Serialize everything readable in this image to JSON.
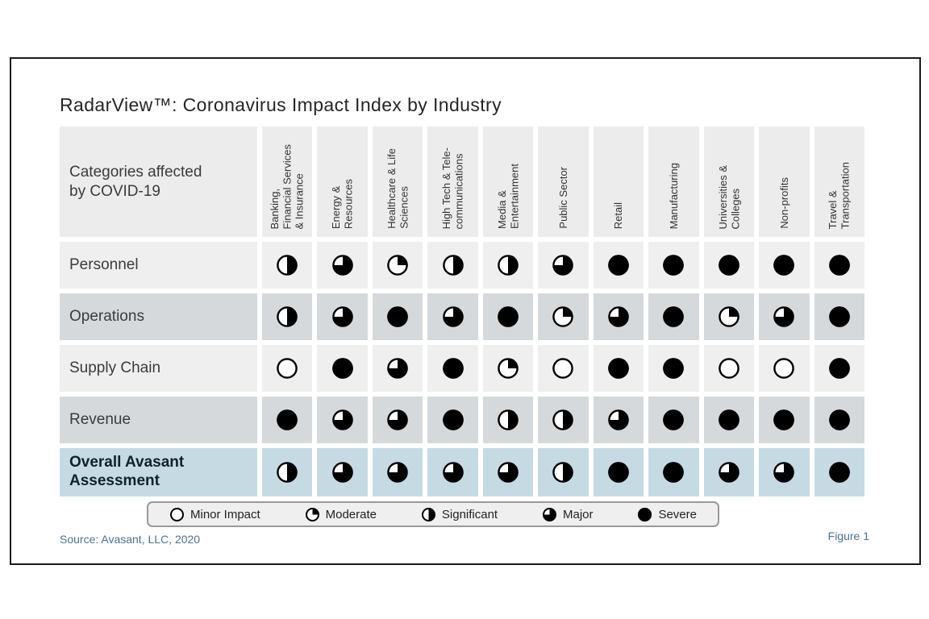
{
  "title": "RadarView™: Coronavirus Impact Index by Industry",
  "footer": {
    "source": "Source: Avasant, LLC, 2020",
    "figure": "Figure 1"
  },
  "legend": [
    {
      "level": "minor",
      "label": "Minor Impact"
    },
    {
      "level": "moderate",
      "label": "Moderate"
    },
    {
      "level": "significant",
      "label": "Significant"
    },
    {
      "level": "major",
      "label": "Major"
    },
    {
      "level": "severe",
      "label": "Severe"
    }
  ],
  "colors": {
    "header_bg": "#ececec",
    "row_light": "#efefef",
    "row_mid": "#d6d9dc",
    "row_accent": "#c6dae4",
    "ball": "#000000",
    "note_blue": "#4f7390",
    "frame_border": "#1a1a1a"
  },
  "chart_data": {
    "type": "table",
    "title": "RadarView™: Coronavirus Impact Index by Industry",
    "corner_label": "Categories affected\nby COVID-19",
    "scale": {
      "minor": 0,
      "moderate": 0.25,
      "significant": 0.5,
      "major": 0.75,
      "severe": 1
    },
    "columns": [
      "Banking,\nFinancial Services\n& Insurance",
      "Energy &\nResources",
      "Healthcare & Life\nSciences",
      "High Tech & Tele-\ncommunications",
      "Media &\nEntertainment",
      "Public Sector",
      "Retail",
      "Manufacturing",
      "Universities &\nColleges",
      "Non-profits",
      "Travel &\nTransportation"
    ],
    "rows": [
      {
        "label": "Personnel",
        "emphasis": false,
        "values": [
          "significant",
          "major",
          "moderate",
          "significant",
          "significant",
          "major",
          "severe",
          "severe",
          "severe",
          "severe",
          "severe"
        ]
      },
      {
        "label": "Operations",
        "emphasis": false,
        "values": [
          "significant",
          "major",
          "severe",
          "major",
          "severe",
          "moderate",
          "major",
          "severe",
          "moderate",
          "major",
          "severe"
        ]
      },
      {
        "label": "Supply Chain",
        "emphasis": false,
        "values": [
          "minor",
          "severe",
          "major",
          "severe",
          "moderate",
          "minor",
          "severe",
          "severe",
          "minor",
          "minor",
          "severe"
        ]
      },
      {
        "label": "Revenue",
        "emphasis": false,
        "values": [
          "severe",
          "major",
          "major",
          "severe",
          "significant",
          "significant",
          "major",
          "severe",
          "severe",
          "severe",
          "severe"
        ]
      },
      {
        "label": "Overall Avasant\nAssessment",
        "emphasis": true,
        "values": [
          "significant",
          "major",
          "major",
          "major",
          "major",
          "significant",
          "severe",
          "severe",
          "major",
          "major",
          "severe"
        ]
      }
    ]
  }
}
